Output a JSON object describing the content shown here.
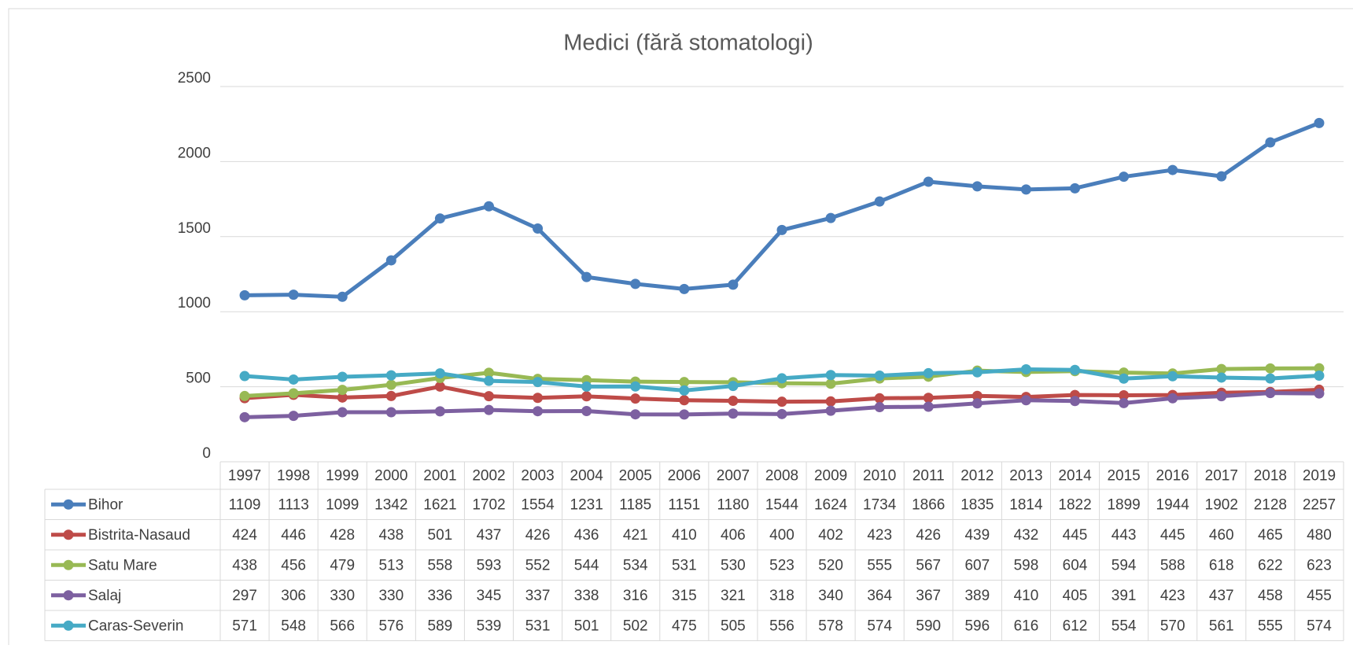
{
  "chart_data": {
    "type": "line",
    "title": "Medici (fără stomatologi)",
    "categories": [
      "1997",
      "1998",
      "1999",
      "2000",
      "2001",
      "2002",
      "2003",
      "2004",
      "2005",
      "2006",
      "2007",
      "2008",
      "2009",
      "2010",
      "2011",
      "2012",
      "2013",
      "2014",
      "2015",
      "2016",
      "2017",
      "2018",
      "2019"
    ],
    "series": [
      {
        "name": "Bihor",
        "color": "#4a7ebb",
        "values": [
          1109,
          1113,
          1099,
          1342,
          1621,
          1702,
          1554,
          1231,
          1185,
          1151,
          1180,
          1544,
          1624,
          1734,
          1866,
          1835,
          1814,
          1822,
          1899,
          1944,
          1902,
          2128,
          2257
        ]
      },
      {
        "name": "Bistrita-Nasaud",
        "color": "#be4b48",
        "values": [
          424,
          446,
          428,
          438,
          501,
          437,
          426,
          436,
          421,
          410,
          406,
          400,
          402,
          423,
          426,
          439,
          432,
          445,
          443,
          445,
          460,
          465,
          480
        ]
      },
      {
        "name": "Satu Mare",
        "color": "#98b954",
        "values": [
          438,
          456,
          479,
          513,
          558,
          593,
          552,
          544,
          534,
          531,
          530,
          523,
          520,
          555,
          567,
          607,
          598,
          604,
          594,
          588,
          618,
          622,
          623
        ]
      },
      {
        "name": "Salaj",
        "color": "#7d60a0",
        "values": [
          297,
          306,
          330,
          330,
          336,
          345,
          337,
          338,
          316,
          315,
          321,
          318,
          340,
          364,
          367,
          389,
          410,
          405,
          391,
          423,
          437,
          458,
          455
        ]
      },
      {
        "name": "Caras-Severin",
        "color": "#46aac5",
        "values": [
          571,
          548,
          566,
          576,
          589,
          539,
          531,
          501,
          502,
          475,
          505,
          556,
          578,
          574,
          590,
          596,
          616,
          612,
          554,
          570,
          561,
          555,
          574
        ]
      }
    ],
    "ylim": [
      0,
      2500
    ],
    "yticks": [
      0,
      500,
      1000,
      1500,
      2000,
      2500
    ],
    "grid": true,
    "legend": "table"
  }
}
